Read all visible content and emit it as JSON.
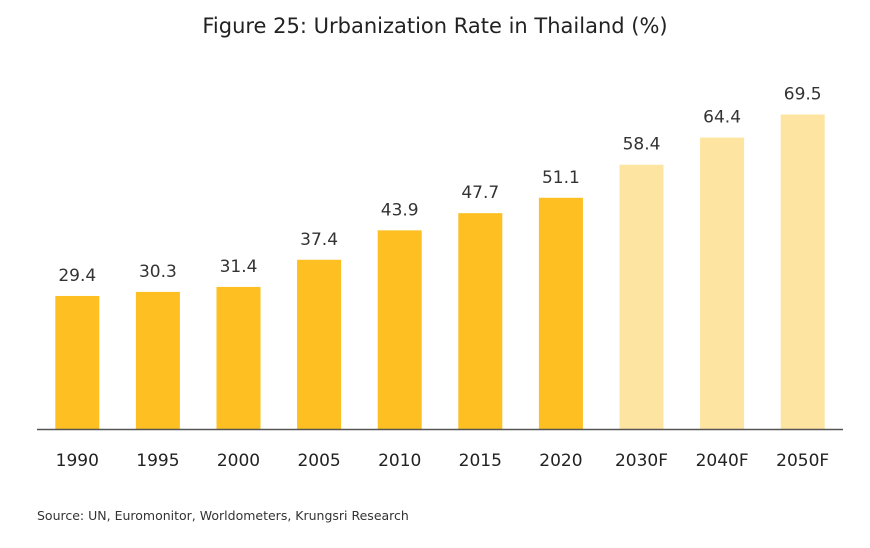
{
  "chart_data": {
    "type": "bar",
    "title": "Figure 25: Urbanization Rate in Thailand (%)",
    "categories": [
      "1990",
      "1995",
      "2000",
      "2005",
      "2010",
      "2015",
      "2020",
      "2030F",
      "2040F",
      "2050F"
    ],
    "values": [
      29.4,
      30.3,
      31.4,
      37.4,
      43.9,
      47.7,
      51.1,
      58.4,
      64.4,
      69.5
    ],
    "forecast": [
      false,
      false,
      false,
      false,
      false,
      false,
      false,
      true,
      true,
      true
    ],
    "xlabel": "",
    "ylabel": "",
    "ylim": [
      0,
      80
    ],
    "grid": false,
    "legend": "none",
    "colors": {
      "actual": "#FDBF21",
      "forecast": "#FEE4A1",
      "axis": "#555555"
    }
  },
  "source": "Source: UN, Euromonitor, Worldometers, Krungsri Research"
}
